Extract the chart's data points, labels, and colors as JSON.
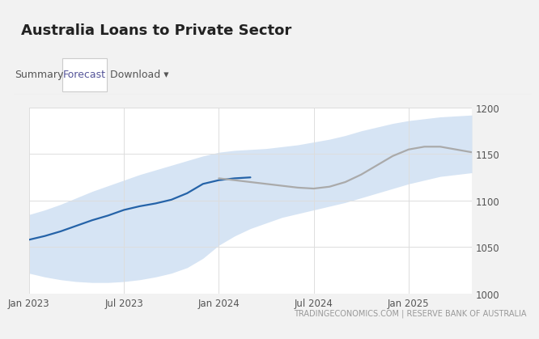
{
  "title": "Australia Loans to Private Sector",
  "tabs": [
    "Summary",
    "Forecast",
    "Download ▾"
  ],
  "active_tab_index": 1,
  "footer": "TRADINGECONOMICS.COM | RESERVE BANK OF AUSTRALIA",
  "ylim": [
    1000,
    1200
  ],
  "yticks": [
    1000,
    1050,
    1100,
    1150,
    1200
  ],
  "x_tick_labels": [
    "Jan 2023",
    "Jul 2023",
    "Jan 2024",
    "Jul 2024",
    "Jan 2025"
  ],
  "background_color": "#f2f2f2",
  "chart_bg": "#ffffff",
  "grid_color": "#dddddd",
  "band_color": "#c5d9f0",
  "band_alpha": 0.7,
  "line_blue_color": "#2563a8",
  "line_gray_color": "#aaaaaa",
  "title_fontsize": 13,
  "tab_fontsize": 9,
  "tick_fontsize": 8.5,
  "footer_fontsize": 7,
  "x_positions": [
    0,
    1,
    2,
    3,
    4,
    5,
    6,
    7,
    8,
    9,
    10,
    11,
    12,
    13,
    14,
    15,
    16,
    17,
    18,
    19,
    20,
    21,
    22,
    23,
    24,
    25,
    26,
    27,
    28
  ],
  "blue_line_y": [
    1058,
    1062,
    1067,
    1073,
    1079,
    1084,
    1090,
    1094,
    1097,
    1101,
    1108,
    1118,
    1122,
    1124,
    1125,
    null,
    null,
    null,
    null,
    null,
    null,
    null,
    null,
    null,
    null,
    null,
    null,
    null,
    null
  ],
  "gray_line_y": [
    null,
    null,
    null,
    null,
    null,
    null,
    null,
    null,
    null,
    null,
    null,
    null,
    1124,
    1122,
    1120,
    1118,
    1116,
    1114,
    1113,
    1115,
    1120,
    1128,
    1138,
    1148,
    1155,
    1158,
    1158,
    1155,
    1152
  ],
  "upper_band_y": [
    1085,
    1090,
    1096,
    1103,
    1110,
    1116,
    1122,
    1128,
    1133,
    1138,
    1143,
    1148,
    1152,
    1154,
    1155,
    1156,
    1158,
    1160,
    1163,
    1166,
    1170,
    1175,
    1179,
    1183,
    1186,
    1188,
    1190,
    1191,
    1192
  ],
  "lower_band_y": [
    1022,
    1018,
    1015,
    1013,
    1012,
    1012,
    1013,
    1015,
    1018,
    1022,
    1028,
    1038,
    1052,
    1062,
    1070,
    1076,
    1082,
    1086,
    1090,
    1094,
    1098,
    1103,
    1108,
    1113,
    1118,
    1122,
    1126,
    1128,
    1130
  ],
  "x_tick_positions": [
    0,
    6,
    12,
    18,
    24
  ],
  "blue_line_end_index": 14,
  "gray_line_start_index": 12
}
